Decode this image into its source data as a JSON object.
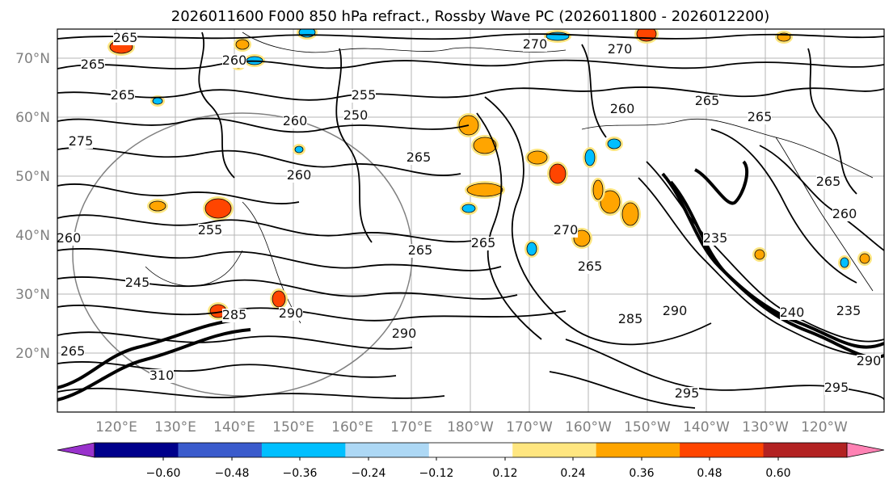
{
  "title": "2026011600 F000 850 hPa refract., Rossby Wave PC (2026011800 - 2026012200)",
  "lat_labels": [
    "70°N",
    "60°N",
    "50°N",
    "40°N",
    "30°N",
    "20°N"
  ],
  "lon_labels": [
    "120°E",
    "130°E",
    "140°E",
    "150°E",
    "160°E",
    "170°E",
    "180°W",
    "170°W",
    "160°W",
    "150°W",
    "140°W",
    "130°W",
    "120°W"
  ],
  "contour_labels": [
    "265",
    "270",
    "270",
    "265",
    "260",
    "265",
    "255",
    "260",
    "250",
    "275",
    "265",
    "260",
    "265",
    "265",
    "260",
    "255",
    "260",
    "265",
    "265",
    "245",
    "265",
    "290",
    "285",
    "290",
    "310",
    "265",
    "295",
    "235",
    "290",
    "285",
    "270",
    "265",
    "255",
    "260",
    "235",
    "240",
    "290",
    "295"
  ],
  "colorbar": {
    "colors": [
      "#9932cc",
      "#00008b",
      "#3a5bcc",
      "#00bfff",
      "#add8f5",
      "#ffffff",
      "#ffe680",
      "#ffa500",
      "#ff4500",
      "#b22222",
      "#ff82b4"
    ],
    "tick_labels": [
      "−0.60",
      "−0.48",
      "−0.36",
      "−0.24",
      "−0.12",
      "0.12",
      "0.24",
      "0.36",
      "0.48",
      "0.60"
    ],
    "extend": "both"
  },
  "legend": {
    "positive_color": "#ffa500",
    "strong_positive_color": "#ff4500",
    "negative_color": "#00bfff"
  }
}
